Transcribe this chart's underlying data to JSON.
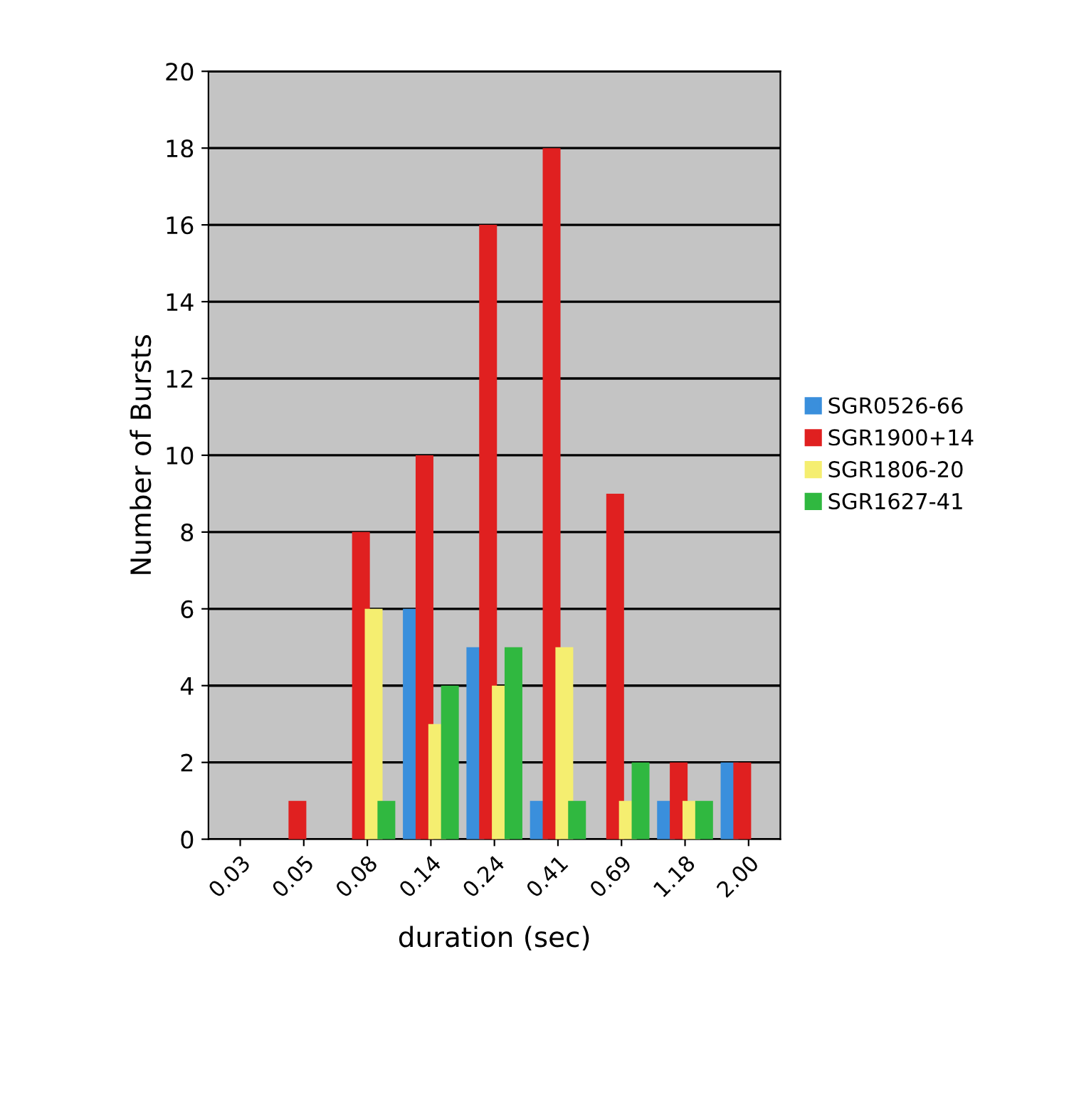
{
  "chart_data": {
    "type": "bar",
    "xlabel": "duration (sec)",
    "ylabel": "Number of Bursts",
    "categories": [
      "0.03",
      "0.05",
      "0.08",
      "0.14",
      "0.24",
      "0.41",
      "0.69",
      "1.18",
      "2.00"
    ],
    "series": [
      {
        "name": "SGR0526-66",
        "color": "#3a8fdc",
        "values": [
          0,
          0,
          0,
          6,
          5,
          1,
          0,
          1,
          2
        ]
      },
      {
        "name": "SGR1900+14",
        "color": "#e02020",
        "values": [
          0,
          1,
          8,
          10,
          16,
          18,
          9,
          2,
          2
        ]
      },
      {
        "name": "SGR1806-20",
        "color": "#f5ee70",
        "values": [
          0,
          0,
          6,
          3,
          4,
          5,
          1,
          1,
          0
        ]
      },
      {
        "name": "SGR1627-41",
        "color": "#30b840",
        "values": [
          0,
          0,
          1,
          4,
          5,
          1,
          2,
          1,
          0
        ]
      }
    ],
    "ylim": [
      0,
      20
    ],
    "yticks": [
      0,
      2,
      4,
      6,
      8,
      10,
      12,
      14,
      16,
      18,
      20
    ],
    "grid": "y",
    "legend": "right"
  }
}
